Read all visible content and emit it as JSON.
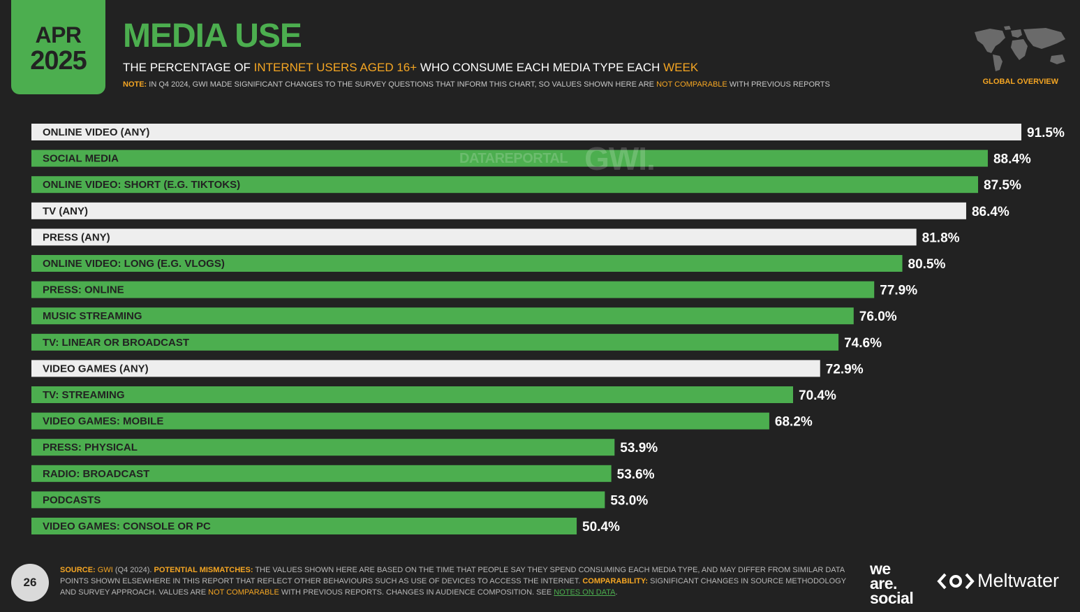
{
  "header": {
    "date_month": "APR",
    "date_year": "2025",
    "title": "MEDIA USE",
    "subtitle": {
      "part1": "THE PERCENTAGE OF ",
      "highlight1": "INTERNET USERS AGED 16+",
      "part2": " WHO CONSUME EACH MEDIA TYPE EACH ",
      "highlight2": "WEEK"
    },
    "note": {
      "label": "NOTE:",
      "text1": " IN Q4 2024, GWI MADE SIGNIFICANT CHANGES TO THE SURVEY QUESTIONS THAT INFORM THIS CHART, SO VALUES SHOWN HERE ARE ",
      "highlight": "NOT COMPARABLE",
      "text2": " WITH PREVIOUS REPORTS"
    },
    "global_label": "GLOBAL OVERVIEW"
  },
  "watermark": {
    "datareportal": "DATAREPORTAL",
    "gwi": "GWI."
  },
  "colors": {
    "green": "#4cae4f",
    "white_bar": "#eeeeee",
    "orange": "#f5a623",
    "background": "#222222"
  },
  "chart_data": {
    "type": "bar",
    "orientation": "horizontal",
    "categories": [
      "ONLINE VIDEO (ANY)",
      "SOCIAL MEDIA",
      "ONLINE VIDEO: SHORT (E.G. TIKTOKS)",
      "TV (ANY)",
      "PRESS (ANY)",
      "ONLINE VIDEO: LONG (E.G. VLOGS)",
      "PRESS: ONLINE",
      "MUSIC STREAMING",
      "TV: LINEAR OR BROADCAST",
      "VIDEO GAMES (ANY)",
      "TV: STREAMING",
      "VIDEO GAMES: MOBILE",
      "PRESS: PHYSICAL",
      "RADIO: BROADCAST",
      "PODCASTS",
      "VIDEO GAMES: CONSOLE OR PC"
    ],
    "values": [
      91.5,
      88.4,
      87.5,
      86.4,
      81.8,
      80.5,
      77.9,
      76.0,
      74.6,
      72.9,
      70.4,
      68.2,
      53.9,
      53.6,
      53.0,
      50.4
    ],
    "value_labels": [
      "91.5%",
      "88.4%",
      "87.5%",
      "86.4%",
      "81.8%",
      "80.5%",
      "77.9%",
      "76.0%",
      "74.6%",
      "72.9%",
      "70.4%",
      "68.2%",
      "53.9%",
      "53.6%",
      "53.0%",
      "50.4%"
    ],
    "bar_style": [
      "white",
      "green",
      "green",
      "white",
      "white",
      "green",
      "green",
      "green",
      "green",
      "white",
      "green",
      "green",
      "green",
      "green",
      "green",
      "green"
    ],
    "xlim": [
      0,
      100
    ],
    "grid": false,
    "legend": "none"
  },
  "footer": {
    "page_number": "26",
    "source_label": "SOURCE:",
    "source_gwi": " GWI",
    "source_period": " (Q4 2024). ",
    "mismatch_label": "POTENTIAL MISMATCHES:",
    "mismatch_text": " THE VALUES SHOWN HERE ARE BASED ON THE TIME THAT PEOPLE SAY THEY SPEND CONSUMING EACH MEDIA TYPE, AND MAY DIFFER FROM SIMILAR DATA POINTS SHOWN ELSEWHERE IN THIS REPORT THAT REFLECT OTHER BEHAVIOURS SUCH AS USE OF DEVICES TO ACCESS THE INTERNET. ",
    "comparability_label": "COMPARABILITY:",
    "comparability_text": " SIGNIFICANT CHANGES IN SOURCE METHODOLOGY AND SURVEY APPROACH. VALUES ARE ",
    "not_comparable": "NOT COMPARABLE",
    "comparability_text2": " WITH PREVIOUS REPORTS. CHANGES IN AUDIENCE COMPOSITION. SEE ",
    "notes_link": "NOTES ON DATA",
    "end": "."
  },
  "logos": {
    "we_are_social": [
      "we",
      "are.",
      "social"
    ],
    "meltwater": "Meltwater"
  }
}
